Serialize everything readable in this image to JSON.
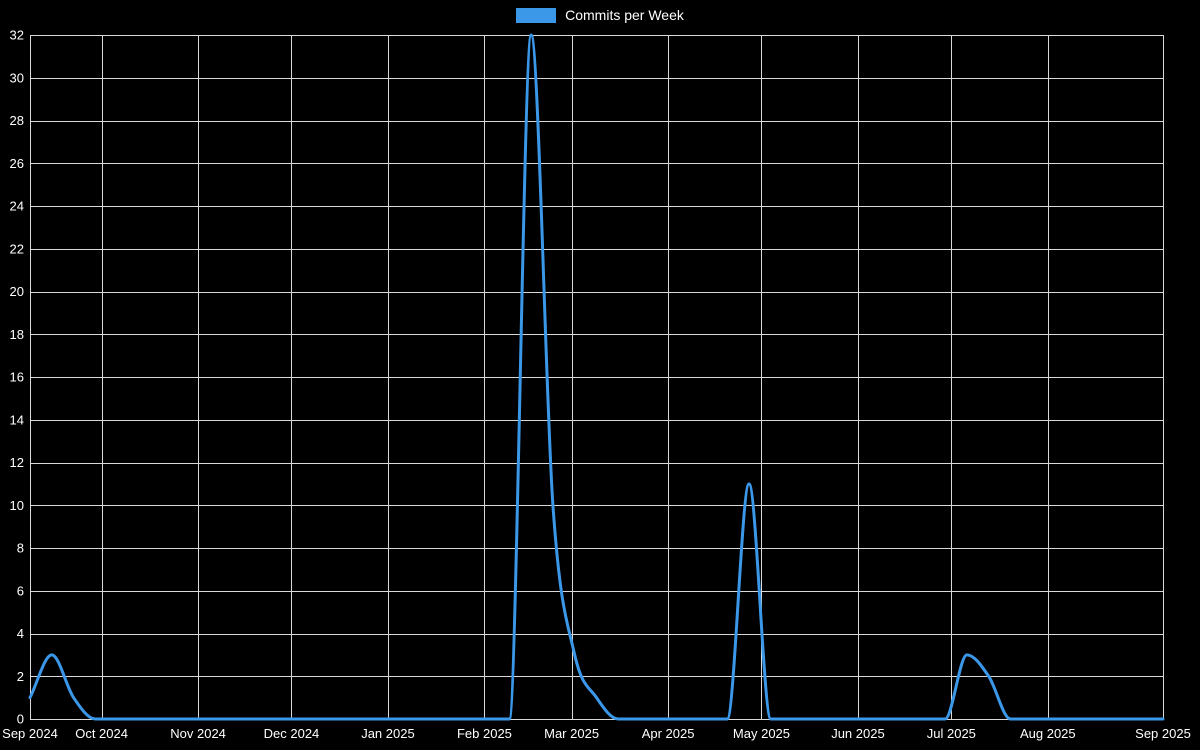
{
  "chart_data": {
    "type": "line",
    "title": "Commits per Week",
    "legend": {
      "label": "Commits per Week",
      "position": "top"
    },
    "colors": {
      "line": "#3b97e8",
      "background": "#000000",
      "grid": "#d9d9d9",
      "text": "#ffffff"
    },
    "grid": true,
    "x_axis": {
      "start": "2024-09-08",
      "end": "2025-09-07",
      "ticks": [
        {
          "date": "2024-09-08",
          "label": "Sep 2024"
        },
        {
          "date": "2024-10-01",
          "label": "Oct 2024"
        },
        {
          "date": "2024-11-01",
          "label": "Nov 2024"
        },
        {
          "date": "2024-12-01",
          "label": "Dec 2024"
        },
        {
          "date": "2025-01-01",
          "label": "Jan 2025"
        },
        {
          "date": "2025-02-01",
          "label": "Feb 2025"
        },
        {
          "date": "2025-03-01",
          "label": "Mar 2025"
        },
        {
          "date": "2025-04-01",
          "label": "Apr 2025"
        },
        {
          "date": "2025-05-01",
          "label": "May 2025"
        },
        {
          "date": "2025-06-01",
          "label": "Jun 2025"
        },
        {
          "date": "2025-07-01",
          "label": "Jul 2025"
        },
        {
          "date": "2025-08-01",
          "label": "Aug 2025"
        },
        {
          "date": "2025-09-07",
          "label": "Sep 2025"
        }
      ]
    },
    "y_axis": {
      "min": 0,
      "max": 32,
      "step": 2,
      "tick_labels": [
        "0",
        "2",
        "4",
        "6",
        "8",
        "10",
        "12",
        "14",
        "16",
        "18",
        "20",
        "22",
        "24",
        "26",
        "28",
        "30",
        "32"
      ]
    },
    "series": [
      {
        "name": "Commits per Week",
        "points": [
          [
            "2024-09-08",
            1
          ],
          [
            "2024-09-15",
            3
          ],
          [
            "2024-09-22",
            1
          ],
          [
            "2024-09-29",
            0
          ],
          [
            "2024-10-06",
            0
          ],
          [
            "2024-10-13",
            0
          ],
          [
            "2024-10-20",
            0
          ],
          [
            "2024-10-27",
            0
          ],
          [
            "2024-11-03",
            0
          ],
          [
            "2024-11-10",
            0
          ],
          [
            "2024-11-17",
            0
          ],
          [
            "2024-11-24",
            0
          ],
          [
            "2024-12-01",
            0
          ],
          [
            "2024-12-08",
            0
          ],
          [
            "2024-12-15",
            0
          ],
          [
            "2024-12-22",
            0
          ],
          [
            "2024-12-29",
            0
          ],
          [
            "2025-01-05",
            0
          ],
          [
            "2025-01-12",
            0
          ],
          [
            "2025-01-19",
            0
          ],
          [
            "2025-01-26",
            0
          ],
          [
            "2025-02-02",
            0
          ],
          [
            "2025-02-09",
            0
          ],
          [
            "2025-02-16",
            32
          ],
          [
            "2025-02-23",
            10
          ],
          [
            "2025-03-02",
            3
          ],
          [
            "2025-03-09",
            1
          ],
          [
            "2025-03-16",
            0
          ],
          [
            "2025-03-23",
            0
          ],
          [
            "2025-03-30",
            0
          ],
          [
            "2025-04-06",
            0
          ],
          [
            "2025-04-13",
            0
          ],
          [
            "2025-04-20",
            0
          ],
          [
            "2025-04-27",
            11
          ],
          [
            "2025-05-04",
            0
          ],
          [
            "2025-05-11",
            0
          ],
          [
            "2025-05-18",
            0
          ],
          [
            "2025-05-25",
            0
          ],
          [
            "2025-06-01",
            0
          ],
          [
            "2025-06-08",
            0
          ],
          [
            "2025-06-15",
            0
          ],
          [
            "2025-06-22",
            0
          ],
          [
            "2025-06-29",
            0
          ],
          [
            "2025-07-06",
            3
          ],
          [
            "2025-07-13",
            2
          ],
          [
            "2025-07-20",
            0
          ],
          [
            "2025-07-27",
            0
          ],
          [
            "2025-08-03",
            0
          ],
          [
            "2025-08-10",
            0
          ],
          [
            "2025-08-17",
            0
          ],
          [
            "2025-08-24",
            0
          ],
          [
            "2025-08-31",
            0
          ],
          [
            "2025-09-07",
            0
          ]
        ]
      }
    ]
  }
}
